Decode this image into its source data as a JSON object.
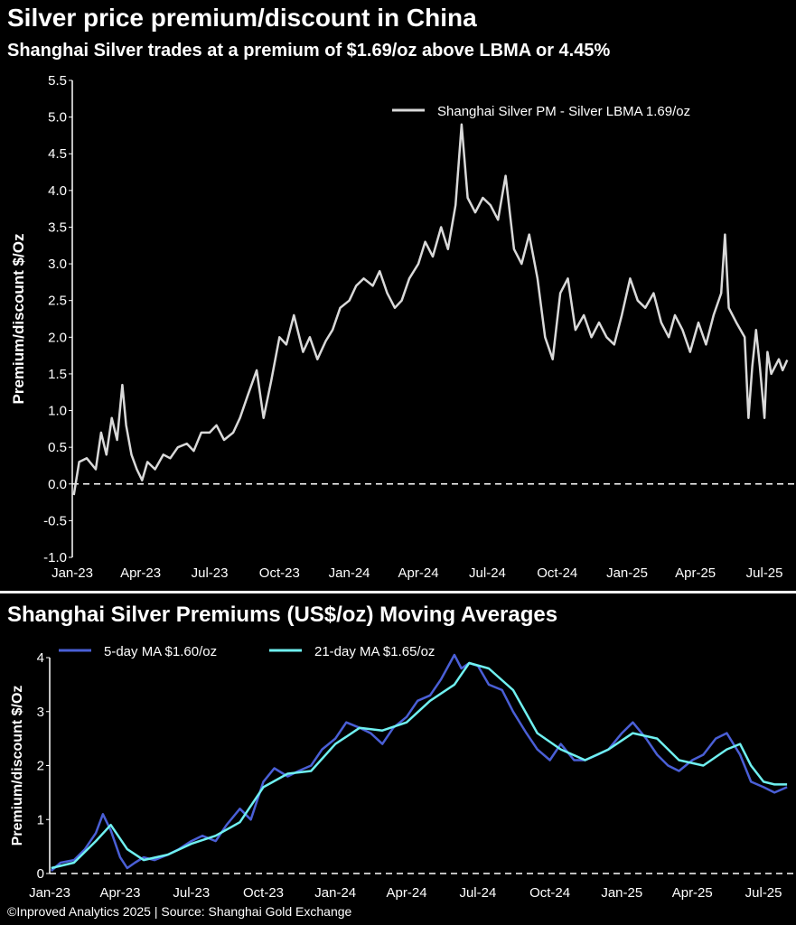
{
  "header": {
    "title": "Silver price premium/discount in China",
    "subtitle": "Shanghai Silver trades at a premium of $1.69/oz above LBMA or 4.45%"
  },
  "footer": {
    "source": "©Inproved Analytics 2025 | Source: Shanghai Gold Exchange"
  },
  "colors": {
    "background": "#000000",
    "premium_line": "#d9d9d9",
    "ma5": "#4a5fd6",
    "ma21": "#6ff0f0",
    "text": "#ffffff"
  },
  "chart_data": [
    {
      "type": "line",
      "title": "Silver price premium/discount in China",
      "subtitle": "Shanghai Silver trades at a premium of $1.69/oz above LBMA or 4.45%",
      "ylabel": "Premium/discount $/Oz",
      "ylim": [
        -1.0,
        5.5
      ],
      "yticks": [
        "-1.0",
        "-0.5",
        "0.0",
        "0.5",
        "1.0",
        "1.5",
        "2.0",
        "2.5",
        "3.0",
        "3.5",
        "4.0",
        "4.5",
        "5.0",
        "5.5"
      ],
      "xticks": [
        "Jan-23",
        "Apr-23",
        "Jul-23",
        "Oct-23",
        "Jan-24",
        "Apr-24",
        "Jul-24",
        "Oct-24",
        "Jan-25",
        "Apr-25",
        "Jul-25"
      ],
      "zero_line": "dashed",
      "legend_position": "top-right",
      "series": [
        {
          "name": "Shanghai Silver PM - Silver LBMA 1.69/oz",
          "x": [
            "2023-01-03",
            "2023-01-10",
            "2023-01-20",
            "2023-02-01",
            "2023-02-08",
            "2023-02-15",
            "2023-02-22",
            "2023-03-01",
            "2023-03-08",
            "2023-03-13",
            "2023-03-20",
            "2023-03-27",
            "2023-04-03",
            "2023-04-10",
            "2023-04-20",
            "2023-05-01",
            "2023-05-10",
            "2023-05-20",
            "2023-06-01",
            "2023-06-10",
            "2023-06-20",
            "2023-07-01",
            "2023-07-10",
            "2023-07-20",
            "2023-08-01",
            "2023-08-10",
            "2023-08-20",
            "2023-09-01",
            "2023-09-10",
            "2023-09-20",
            "2023-10-01",
            "2023-10-10",
            "2023-10-20",
            "2023-11-01",
            "2023-11-10",
            "2023-11-20",
            "2023-12-01",
            "2023-12-10",
            "2023-12-20",
            "2024-01-01",
            "2024-01-10",
            "2024-01-20",
            "2024-02-01",
            "2024-02-10",
            "2024-02-20",
            "2024-03-01",
            "2024-03-10",
            "2024-03-20",
            "2024-04-01",
            "2024-04-10",
            "2024-04-20",
            "2024-05-01",
            "2024-05-10",
            "2024-05-20",
            "2024-05-28",
            "2024-06-05",
            "2024-06-15",
            "2024-06-25",
            "2024-07-05",
            "2024-07-15",
            "2024-07-25",
            "2024-08-05",
            "2024-08-15",
            "2024-08-25",
            "2024-09-05",
            "2024-09-15",
            "2024-09-25",
            "2024-10-05",
            "2024-10-15",
            "2024-10-25",
            "2024-11-05",
            "2024-11-15",
            "2024-11-25",
            "2024-12-05",
            "2024-12-15",
            "2024-12-25",
            "2025-01-05",
            "2025-01-15",
            "2025-01-25",
            "2025-02-05",
            "2025-02-15",
            "2025-02-25",
            "2025-03-05",
            "2025-03-15",
            "2025-03-25",
            "2025-04-05",
            "2025-04-15",
            "2025-04-25",
            "2025-05-05",
            "2025-05-10",
            "2025-05-15",
            "2025-05-25",
            "2025-06-05",
            "2025-06-10",
            "2025-06-15",
            "2025-06-20",
            "2025-06-25",
            "2025-07-01",
            "2025-07-05",
            "2025-07-10",
            "2025-07-15",
            "2025-07-20",
            "2025-07-25",
            "2025-07-31"
          ],
          "values": [
            -0.15,
            0.3,
            0.35,
            0.2,
            0.7,
            0.4,
            0.9,
            0.6,
            1.35,
            0.8,
            0.4,
            0.2,
            0.05,
            0.3,
            0.2,
            0.4,
            0.35,
            0.5,
            0.55,
            0.45,
            0.7,
            0.7,
            0.8,
            0.6,
            0.7,
            0.9,
            1.2,
            1.55,
            0.9,
            1.4,
            2.0,
            1.9,
            2.3,
            1.8,
            2.0,
            1.7,
            1.95,
            2.1,
            2.4,
            2.5,
            2.7,
            2.8,
            2.7,
            2.9,
            2.6,
            2.4,
            2.5,
            2.8,
            3.0,
            3.3,
            3.1,
            3.5,
            3.2,
            3.8,
            4.9,
            3.9,
            3.7,
            3.9,
            3.8,
            3.6,
            4.2,
            3.2,
            3.0,
            3.4,
            2.8,
            2.0,
            1.7,
            2.6,
            2.8,
            2.1,
            2.3,
            2.0,
            2.2,
            2.0,
            1.9,
            2.3,
            2.8,
            2.5,
            2.4,
            2.6,
            2.2,
            2.0,
            2.3,
            2.1,
            1.8,
            2.2,
            1.9,
            2.3,
            2.6,
            3.4,
            2.4,
            2.2,
            2.0,
            0.9,
            1.6,
            2.1,
            1.6,
            0.9,
            1.8,
            1.5,
            1.6,
            1.7,
            1.55,
            1.69
          ]
        }
      ]
    },
    {
      "type": "line",
      "title": "Shanghai Silver Premiums (US$/oz) Moving Averages",
      "ylabel": "Premium/discount $/Oz",
      "ylim": [
        0,
        4
      ],
      "yticks": [
        "0",
        "1",
        "2",
        "3",
        "4"
      ],
      "xticks": [
        "Jan-23",
        "Apr-23",
        "Jul-23",
        "Oct-23",
        "Jan-24",
        "Apr-24",
        "Jul-24",
        "Oct-24",
        "Jan-25",
        "Apr-25",
        "Jul-25"
      ],
      "zero_line": "dashed",
      "legend_position": "top-left",
      "series": [
        {
          "name": "5-day MA $1.60/oz",
          "x": [
            "2023-01-03",
            "2023-01-15",
            "2023-02-01",
            "2023-02-15",
            "2023-03-01",
            "2023-03-10",
            "2023-03-20",
            "2023-04-01",
            "2023-04-10",
            "2023-04-20",
            "2023-05-01",
            "2023-05-15",
            "2023-06-01",
            "2023-06-15",
            "2023-07-01",
            "2023-07-15",
            "2023-08-01",
            "2023-08-15",
            "2023-09-01",
            "2023-09-15",
            "2023-10-01",
            "2023-10-15",
            "2023-11-01",
            "2023-11-15",
            "2023-12-01",
            "2023-12-15",
            "2024-01-01",
            "2024-01-15",
            "2024-02-01",
            "2024-02-15",
            "2024-03-01",
            "2024-03-15",
            "2024-04-01",
            "2024-04-15",
            "2024-05-01",
            "2024-05-15",
            "2024-06-01",
            "2024-06-10",
            "2024-06-20",
            "2024-07-01",
            "2024-07-15",
            "2024-08-01",
            "2024-08-15",
            "2024-09-01",
            "2024-09-15",
            "2024-10-01",
            "2024-10-15",
            "2024-11-01",
            "2024-11-15",
            "2024-12-01",
            "2024-12-15",
            "2025-01-01",
            "2025-01-15",
            "2025-02-01",
            "2025-02-15",
            "2025-03-01",
            "2025-03-15",
            "2025-04-01",
            "2025-04-15",
            "2025-05-01",
            "2025-05-15",
            "2025-06-01",
            "2025-06-15",
            "2025-07-01",
            "2025-07-15",
            "2025-07-31"
          ],
          "values": [
            0.05,
            0.2,
            0.25,
            0.45,
            0.75,
            1.1,
            0.8,
            0.3,
            0.1,
            0.2,
            0.3,
            0.25,
            0.35,
            0.45,
            0.6,
            0.7,
            0.6,
            0.9,
            1.2,
            1.0,
            1.7,
            1.95,
            1.8,
            1.9,
            2.0,
            2.3,
            2.5,
            2.8,
            2.7,
            2.6,
            2.4,
            2.7,
            2.9,
            3.2,
            3.3,
            3.6,
            4.05,
            3.8,
            3.9,
            3.85,
            3.5,
            3.4,
            3.0,
            2.6,
            2.3,
            2.1,
            2.4,
            2.1,
            2.1,
            2.2,
            2.3,
            2.6,
            2.8,
            2.5,
            2.2,
            2.0,
            1.9,
            2.1,
            2.2,
            2.5,
            2.6,
            2.2,
            1.7,
            1.6,
            1.5,
            1.6
          ]
        },
        {
          "name": "21-day MA $1.65/oz",
          "x": [
            "2023-01-03",
            "2023-02-01",
            "2023-03-01",
            "2023-03-20",
            "2023-04-10",
            "2023-05-01",
            "2023-06-01",
            "2023-07-01",
            "2023-08-01",
            "2023-09-01",
            "2023-10-01",
            "2023-11-01",
            "2023-12-01",
            "2024-01-01",
            "2024-02-01",
            "2024-03-01",
            "2024-04-01",
            "2024-05-01",
            "2024-06-01",
            "2024-06-20",
            "2024-07-15",
            "2024-08-15",
            "2024-09-15",
            "2024-10-15",
            "2024-11-15",
            "2024-12-15",
            "2025-01-15",
            "2025-02-15",
            "2025-03-15",
            "2025-04-15",
            "2025-05-15",
            "2025-06-01",
            "2025-06-15",
            "2025-07-01",
            "2025-07-15",
            "2025-07-31"
          ],
          "values": [
            0.1,
            0.2,
            0.6,
            0.9,
            0.45,
            0.25,
            0.35,
            0.55,
            0.7,
            0.95,
            1.6,
            1.85,
            1.9,
            2.4,
            2.7,
            2.65,
            2.8,
            3.2,
            3.5,
            3.9,
            3.8,
            3.4,
            2.6,
            2.3,
            2.1,
            2.3,
            2.6,
            2.5,
            2.1,
            2.0,
            2.3,
            2.4,
            2.0,
            1.7,
            1.65,
            1.65
          ]
        }
      ]
    }
  ]
}
